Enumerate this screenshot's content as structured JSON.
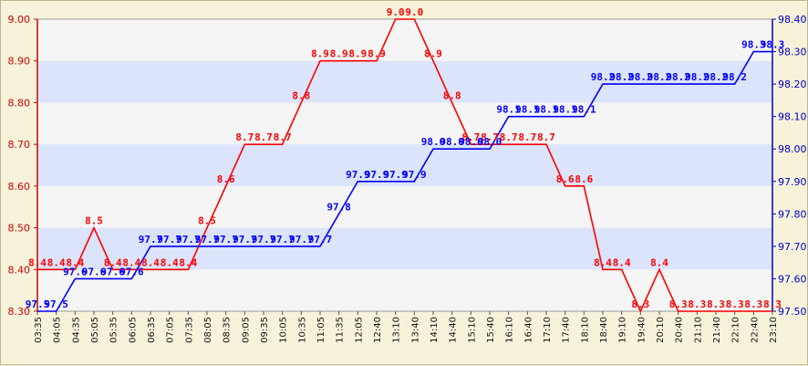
{
  "chart_data": {
    "type": "line",
    "x": [
      "03:35",
      "04:05",
      "04:35",
      "05:05",
      "05:35",
      "06:05",
      "06:35",
      "07:05",
      "07:35",
      "08:05",
      "08:35",
      "09:05",
      "09:35",
      "10:05",
      "10:35",
      "11:05",
      "11:35",
      "12:05",
      "12:40",
      "13:10",
      "13:40",
      "14:10",
      "14:40",
      "15:10",
      "15:40",
      "16:10",
      "16:40",
      "17:10",
      "17:40",
      "18:10",
      "18:40",
      "19:10",
      "19:40",
      "20:10",
      "20:40",
      "21:10",
      "21:40",
      "22:10",
      "22:40",
      "23:10"
    ],
    "series": [
      {
        "axis": "left",
        "color": "#ff0000",
        "values": [
          8.4,
          8.4,
          8.4,
          8.5,
          8.4,
          8.4,
          8.4,
          8.4,
          8.4,
          8.5,
          8.6,
          8.7,
          8.7,
          8.7,
          8.8,
          8.9,
          8.9,
          8.9,
          8.9,
          9.0,
          9.0,
          8.9,
          8.8,
          8.7,
          8.7,
          8.7,
          8.7,
          8.7,
          8.6,
          8.6,
          8.4,
          8.4,
          8.3,
          8.4,
          8.3,
          8.3,
          8.3,
          8.3,
          8.3,
          8.3
        ],
        "point_labels": [
          "8.4",
          "8.4",
          "8.4",
          "8.5",
          "8.4",
          "8.4",
          "8.4",
          "8.4",
          "8.4",
          "8.5",
          "8.6",
          "8.7",
          "8.7",
          "8.7",
          "8.8",
          "8.9",
          "8.9",
          "8.9",
          "8.9",
          "9.0",
          "9.0",
          "8.9",
          "8.8",
          "8.7",
          "8.7",
          "8.7",
          "8.7",
          "8.7",
          "8.6",
          "8.6",
          "8.4",
          "8.4",
          "8.3",
          "8.4",
          "8.3",
          "8.3",
          "8.3",
          "8.3",
          "8.3",
          "8.3"
        ]
      },
      {
        "axis": "right",
        "color": "#0000ff",
        "values": [
          97.5,
          97.5,
          97.6,
          97.6,
          97.6,
          97.6,
          97.7,
          97.7,
          97.7,
          97.7,
          97.7,
          97.7,
          97.7,
          97.7,
          97.7,
          97.7,
          97.8,
          97.9,
          97.9,
          97.9,
          97.9,
          98.0,
          98.0,
          98.0,
          98.0,
          98.1,
          98.1,
          98.1,
          98.1,
          98.1,
          98.2,
          98.2,
          98.2,
          98.2,
          98.2,
          98.2,
          98.2,
          98.2,
          98.3,
          98.3
        ],
        "point_labels": [
          "97.5",
          "97.5",
          "97.6",
          "97.6",
          "97.6",
          "97.6",
          "97.7",
          "97.7",
          "97.7",
          "97.7",
          "97.7",
          "97.7",
          "97.7",
          "97.7",
          "97.7",
          "97.7",
          "97.8",
          "97.9",
          "97.9",
          "97.9",
          "97.9",
          "98.0",
          "98.0",
          "98.0",
          "98.0",
          "98.1",
          "98.1",
          "98.1",
          "98.1",
          "98.1",
          "98.2",
          "98.2",
          "98.2",
          "98.2",
          "98.2",
          "98.2",
          "98.2",
          "98.2",
          "98.3",
          "98.3"
        ]
      }
    ],
    "y_left": {
      "ylim": [
        8.3,
        9.0
      ],
      "ticks": [
        "8.30",
        "8.40",
        "8.50",
        "8.60",
        "8.70",
        "8.80",
        "8.90",
        "9.00"
      ],
      "color": "#d00000"
    },
    "y_right": {
      "ylim": [
        97.5,
        98.4
      ],
      "ticks": [
        "97.50",
        "97.60",
        "97.70",
        "97.80",
        "97.90",
        "98.00",
        "98.10",
        "98.20",
        "98.30",
        "98.40"
      ],
      "color": "#0000c8"
    },
    "grid": true,
    "band_colors": [
      "#dce4fb",
      "#f5f5f5"
    ],
    "background": "#f6f3da"
  }
}
